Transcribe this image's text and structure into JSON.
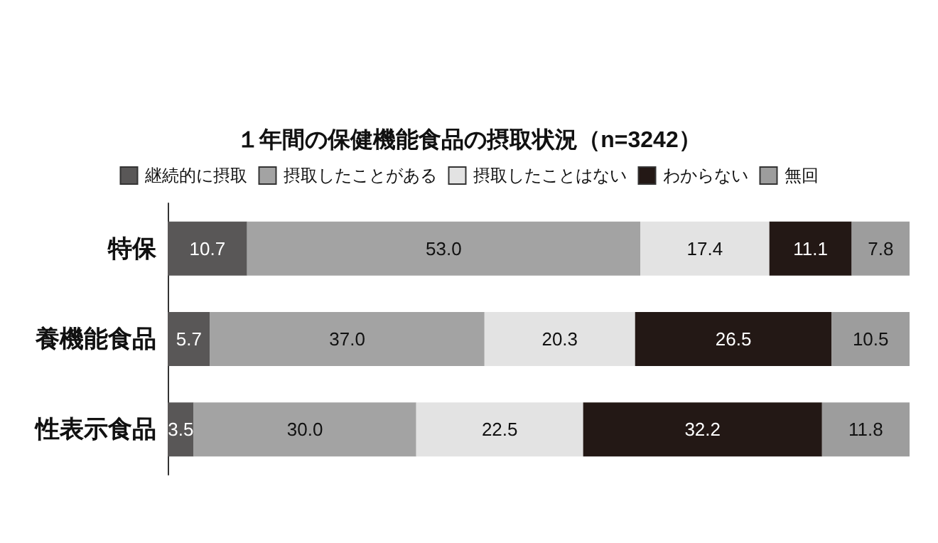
{
  "chart_data": {
    "type": "bar",
    "orientation": "horizontal",
    "stacked": true,
    "title": "１年間の保健機能食品の摂取状況（n=3242）",
    "categories": [
      "特保",
      "養機能食品",
      "性表示食品"
    ],
    "series": [
      {
        "name": "継続的に摂取",
        "color": "#595757",
        "values": [
          10.7,
          5.7,
          3.5
        ],
        "value_labels": [
          "10.7",
          "5.7",
          "3.5"
        ]
      },
      {
        "name": "摂取したことがある",
        "color": "#a3a3a3",
        "values": [
          53.0,
          37.0,
          30.0
        ],
        "value_labels": [
          "53.0",
          "37.0",
          "30.0"
        ]
      },
      {
        "name": "摂取したことはない",
        "color": "#e3e3e3",
        "values": [
          17.4,
          20.3,
          22.5
        ],
        "value_labels": [
          "17.4",
          "20.3",
          "22.5"
        ]
      },
      {
        "name": "わからない",
        "color": "#231815",
        "values": [
          11.1,
          26.5,
          32.2
        ],
        "value_labels": [
          "11.1",
          "26.5",
          "32.2"
        ]
      },
      {
        "name": "無回",
        "color": "#9d9d9d",
        "values": [
          7.8,
          10.5,
          11.8
        ],
        "value_labels": [
          "7.8",
          "10.5",
          "11.8"
        ]
      }
    ],
    "legend": "top"
  }
}
